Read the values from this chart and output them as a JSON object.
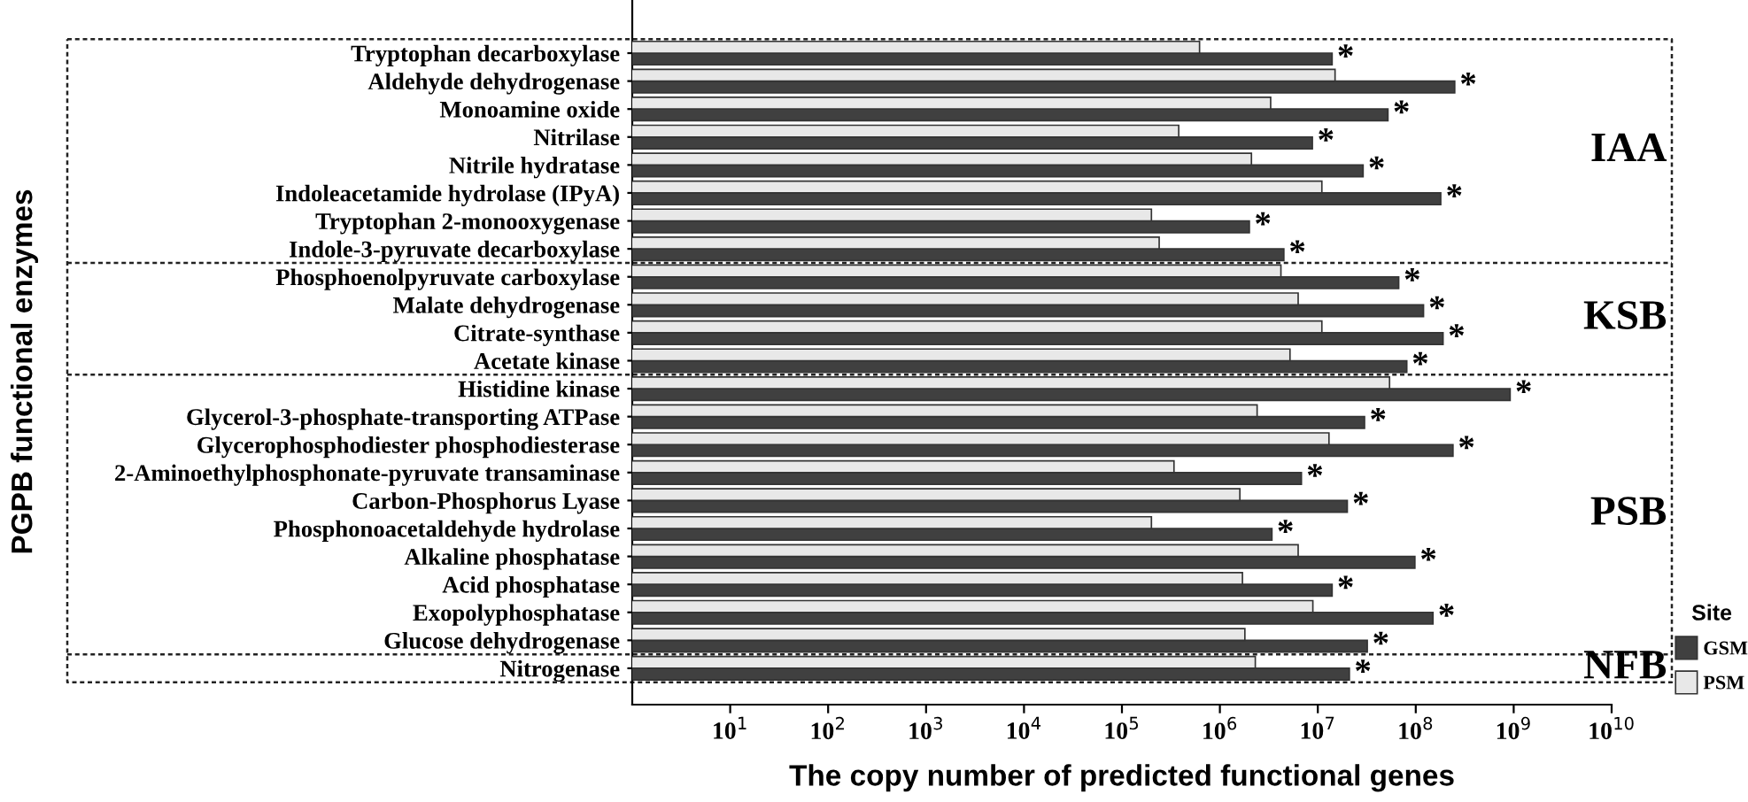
{
  "chart_data": {
    "type": "bar",
    "orientation": "horizontal",
    "xlabel": "The copy number of predicted functional genes",
    "ylabel": "PGPB functional enzymes",
    "legend_title": "Site",
    "legend": "bottom right",
    "categories": [
      "Tryptophan decarboxylase",
      "Aldehyde dehydrogenase",
      "Monoamine oxide",
      "Nitrilase",
      "Nitrile hydratase",
      "Indoleacetamide hydrolase (IPyA)",
      "Tryptophan 2-monooxygenase",
      "Indole-3-pyruvate decarboxylase",
      "Phosphoenolpyruvate carboxylase",
      "Malate dehydrogenase",
      "Citrate-synthase",
      "Acetate kinase",
      "Histidine kinase",
      "Glycerol-3-phosphate-transporting ATPase",
      "Glycerophosphodiester phosphodiesterase",
      "2-Aminoethylphosphonate-pyruvate transaminase",
      "Carbon-Phosphorus Lyase",
      "Phosphonoacetaldehyde hydrolase",
      "Alkaline phosphatase",
      "Acid phosphatase",
      "Exopolyphosphatase",
      "Glucose dehydrogenase",
      "Nitrogenase"
    ],
    "series": [
      {
        "name": "GSM",
        "color": "#404040",
        "values": [
          14000000,
          250000000,
          52000000,
          8800000,
          29000000,
          180000000,
          2000000,
          4500000,
          67000000,
          120000000,
          190000000,
          81000000,
          920000000,
          30000000,
          240000000,
          6800000,
          20000000,
          3400000,
          98000000,
          14000000,
          150000000,
          32000000,
          21000000
        ],
        "value_labels": [
          "*",
          "*",
          "*",
          "*",
          "*",
          "*",
          "*",
          "*",
          "*",
          "*",
          "*",
          "*",
          "*",
          "*",
          "*",
          "*",
          "*",
          "*",
          "*",
          "*",
          "*",
          "*",
          "*"
        ]
      },
      {
        "name": "PSM",
        "color": "#e8e8e8",
        "values": [
          620000,
          15000000,
          3300000,
          380000,
          2100000,
          11000000,
          200000,
          240000,
          4200000,
          6300000,
          11000000,
          5200000,
          54000000,
          2400000,
          13000000,
          340000,
          1600000,
          200000,
          6300000,
          1700000,
          8900000,
          1800000,
          2300000
        ]
      }
    ],
    "log": "x",
    "xlim": [
      1,
      10000000000
    ],
    "xticks": [
      {
        "value": 10,
        "label": "10$^{1}$"
      },
      {
        "value": 100,
        "label": "10$^{2}$"
      },
      {
        "value": 1000,
        "label": "10$^{3}$"
      },
      {
        "value": 10000,
        "label": "10$^{4}$"
      },
      {
        "value": 100000,
        "label": "10$^{5}$"
      },
      {
        "value": 1000000,
        "label": "10$^{6}$"
      },
      {
        "value": 10000000,
        "label": "10$^{7}$"
      },
      {
        "value": 100000000,
        "label": "10$^{8}$"
      },
      {
        "value": 1000000000,
        "label": "10$^{9}$"
      },
      {
        "value": 10000000000,
        "label": "10$^{10}$"
      }
    ],
    "grid": false,
    "annotations": [
      "IAA",
      "KSB",
      "PSB",
      "NFB"
    ]
  }
}
